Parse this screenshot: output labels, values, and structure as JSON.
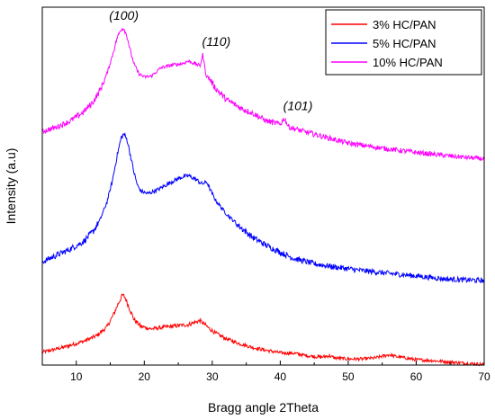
{
  "chart_data": {
    "type": "line",
    "title": "",
    "xlabel": "Bragg angle 2Theta",
    "ylabel": "Intensity (a.u)",
    "xlim": [
      5,
      70
    ],
    "ylim": [
      0,
      100
    ],
    "x_ticks": [
      "10",
      "20",
      "30",
      "40",
      "50",
      "60",
      "70"
    ],
    "y_ticks_visible": false,
    "grid": false,
    "legend_position": "top-right",
    "legend": [
      "3% HC/PAN",
      "5% HC/PAN",
      "10% HC/PAN"
    ],
    "annotations": [
      {
        "text": "(100)",
        "x": 17,
        "y": 96.5
      },
      {
        "text": "(110)",
        "x": 30.6,
        "y": 89.2
      },
      {
        "text": "(101)",
        "x": 42.6,
        "y": 71.2
      }
    ],
    "series": [
      {
        "name": "3% HC/PAN",
        "color": "#ff0000",
        "x": [
          5,
          8,
          11,
          13,
          14.5,
          15.5,
          16.2,
          16.8,
          17.2,
          17.8,
          18.5,
          19.5,
          21,
          23,
          25,
          26.5,
          27.5,
          28.2,
          28.8,
          29.5,
          30.5,
          32,
          34,
          36,
          38,
          40,
          42,
          44,
          46,
          47.2,
          48,
          50,
          52,
          54,
          56,
          57,
          58,
          60,
          62,
          64,
          66,
          68,
          70
        ],
        "y": [
          3.6,
          4.9,
          6.6,
          8.2,
          10.6,
          14.2,
          17.3,
          19.6,
          18.8,
          15.9,
          12.7,
          10.8,
          10.1,
          10.6,
          11.0,
          11.3,
          12.0,
          12.4,
          11.5,
          10.3,
          8.9,
          7.4,
          6.0,
          4.9,
          4.1,
          3.4,
          3.3,
          2.6,
          2.2,
          2.6,
          2.0,
          1.7,
          1.7,
          2.0,
          2.9,
          2.4,
          2.1,
          1.5,
          1.3,
          1.0,
          0.7,
          0.4,
          0.2
        ]
      },
      {
        "name": "5% HC/PAN",
        "color": "#0000ff",
        "x": [
          5,
          7,
          9,
          11,
          12.5,
          13.5,
          14.5,
          15.3,
          16,
          16.6,
          17,
          17.5,
          18,
          18.5,
          19,
          19.5,
          20.5,
          22,
          24,
          25.5,
          26.5,
          27.5,
          28.5,
          29.2,
          29.7,
          30.5,
          32,
          34,
          36,
          38,
          40,
          42,
          45,
          48,
          52,
          56,
          60,
          64,
          67,
          70
        ],
        "y": [
          28.8,
          30.6,
          32.3,
          34.4,
          37.4,
          40.6,
          45.5,
          51.4,
          58.5,
          63.5,
          64.6,
          62.8,
          58.3,
          53.7,
          50.2,
          48.6,
          47.9,
          49.0,
          51.2,
          52.5,
          52.9,
          52.0,
          50.6,
          51.2,
          49.0,
          46.0,
          42.4,
          38.7,
          35.6,
          33.4,
          31.5,
          29.8,
          28.3,
          27.4,
          26.4,
          25.6,
          24.9,
          24.1,
          23.8,
          23.6
        ]
      },
      {
        "name": "10% HC/PAN",
        "color": "#ff00ff",
        "x": [
          5,
          7,
          9,
          11,
          12.5,
          13.5,
          14.5,
          15.3,
          16,
          16.6,
          17,
          17.5,
          18,
          18.5,
          19.2,
          20,
          21,
          22.5,
          24,
          25.5,
          26.5,
          27.5,
          28.2,
          28.6,
          29.1,
          29.6,
          30.5,
          32,
          34,
          36,
          38,
          40,
          40.6,
          41.2,
          43,
          46,
          50,
          55,
          60,
          65,
          70
        ],
        "y": [
          65.3,
          66.4,
          68.1,
          70.6,
          73.6,
          76.8,
          81.4,
          86.4,
          91.4,
          93.9,
          94.1,
          91.6,
          87.4,
          84.1,
          81.4,
          80.5,
          80.7,
          83.1,
          83.8,
          84.2,
          84.9,
          84.2,
          83.6,
          86.7,
          80.9,
          80.0,
          77.3,
          74.3,
          72.0,
          70.3,
          68.2,
          67.3,
          69.0,
          66.6,
          65.5,
          64.0,
          62.0,
          60.6,
          59.4,
          58.4,
          57.6
        ]
      }
    ]
  }
}
